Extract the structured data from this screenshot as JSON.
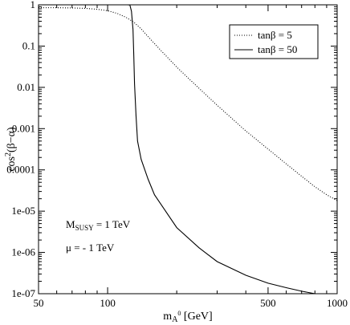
{
  "chart_data": {
    "type": "line",
    "xscale": "log",
    "yscale": "log",
    "xlim": [
      50,
      1000
    ],
    "ylim": [
      1e-07,
      1
    ],
    "x_ticks": [
      50,
      100,
      500,
      1000
    ],
    "x_tick_labels": [
      "50",
      "100",
      "500",
      "1000"
    ],
    "y_ticks": [
      1,
      0.1,
      0.01,
      0.001,
      0.0001,
      1e-05,
      1e-06,
      1e-07
    ],
    "y_tick_labels": [
      "1",
      "0.1",
      "0.01",
      "0.001",
      "0.0001",
      "1e-05",
      "1e-06",
      "1e-07"
    ],
    "xlabel": {
      "main": "m",
      "sub": "A",
      "sup": "0",
      "rest": " [GeV]"
    },
    "ylabel": {
      "main": "cos",
      "sup": "2",
      "rest": "(β−α)"
    },
    "grid": false,
    "legend_position": "top-right",
    "annotations": [
      {
        "main": "M",
        "sub": "SUSY",
        "rest": " = 1 TeV"
      },
      {
        "text": "μ = - 1 TeV"
      }
    ],
    "series": [
      {
        "name": "tanβ = 5",
        "style": "dotted",
        "x": [
          50,
          60,
          70,
          80,
          90,
          100,
          110,
          120,
          130,
          140,
          150,
          170,
          200,
          250,
          300,
          400,
          500,
          600,
          700,
          800,
          900,
          1000
        ],
        "y": [
          0.85,
          0.85,
          0.84,
          0.82,
          0.78,
          0.72,
          0.62,
          0.5,
          0.38,
          0.26,
          0.17,
          0.08,
          0.031,
          0.0095,
          0.0037,
          0.00088,
          0.00032,
          0.00014,
          7e-05,
          3.9e-05,
          2.5e-05,
          1.8e-05
        ]
      },
      {
        "name": "tanβ = 50",
        "style": "solid",
        "x": [
          50,
          80,
          110,
          120,
          122,
          125,
          127,
          129,
          130,
          131,
          133,
          135,
          140,
          150,
          160,
          200,
          250,
          300,
          400,
          500,
          600,
          700,
          800,
          830
        ],
        "y": [
          1,
          1,
          1,
          1,
          1,
          0.99,
          0.7,
          0.25,
          0.06,
          0.012,
          0.002,
          0.0005,
          0.00018,
          6e-05,
          2.5e-05,
          4e-06,
          1.3e-06,
          6e-07,
          2.8e-07,
          1.8e-07,
          1.4e-07,
          1.15e-07,
          1e-07,
          9e-08
        ]
      }
    ]
  }
}
